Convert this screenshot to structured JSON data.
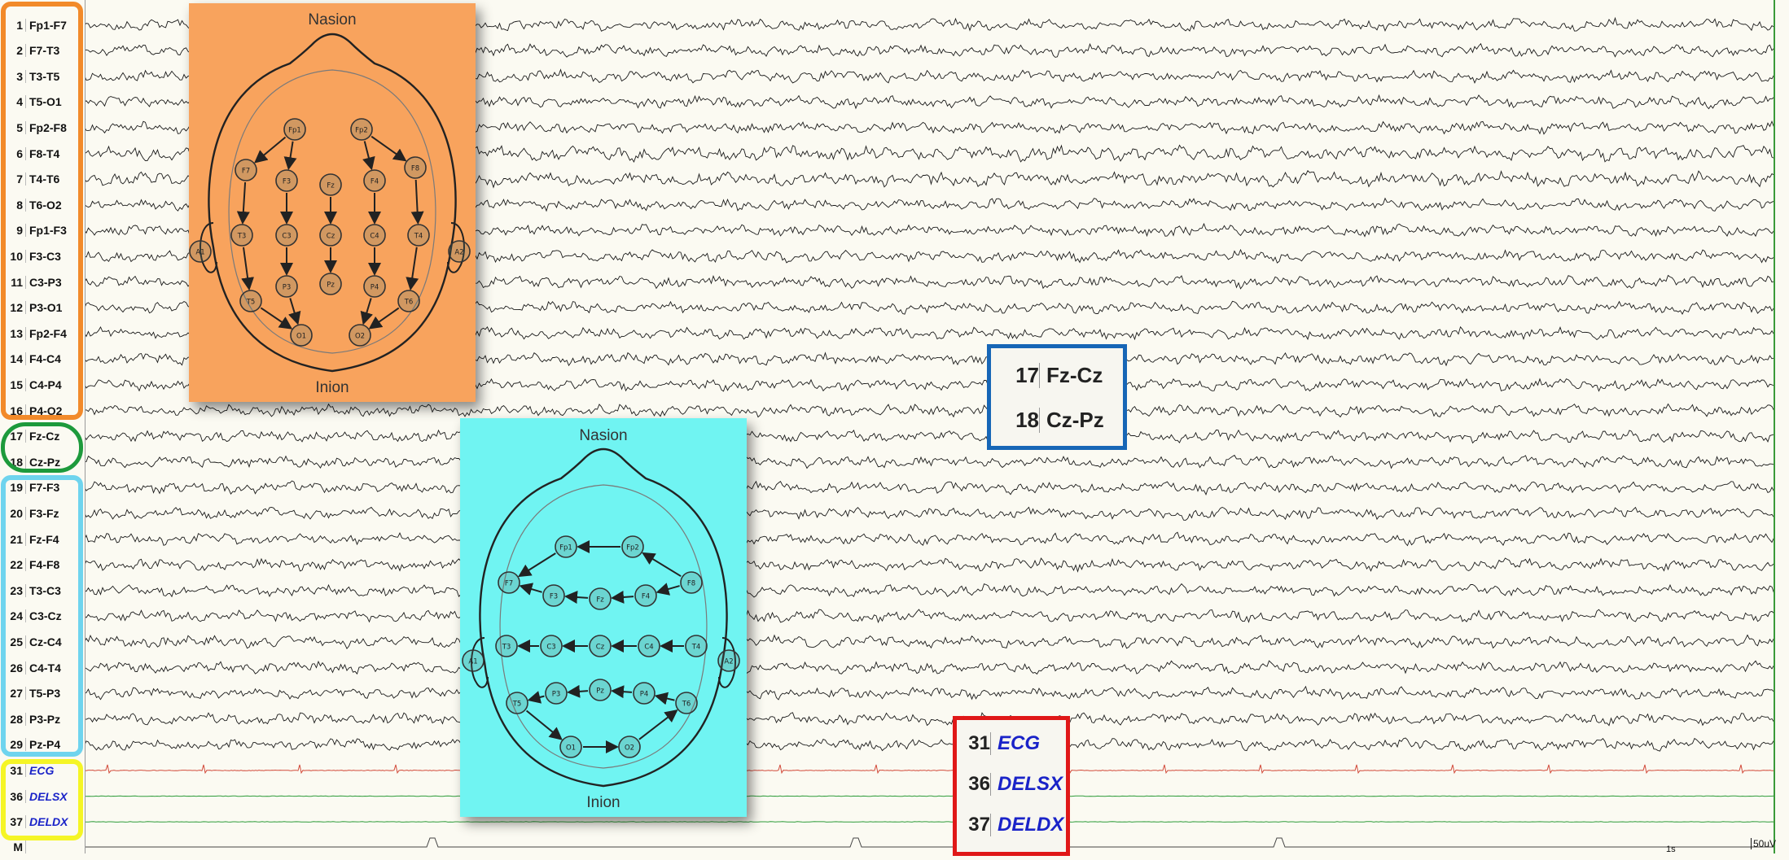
{
  "channels": [
    {
      "num": "1",
      "label": "Fp1-F7"
    },
    {
      "num": "2",
      "label": "F7-T3"
    },
    {
      "num": "3",
      "label": "T3-T5"
    },
    {
      "num": "4",
      "label": "T5-O1"
    },
    {
      "num": "5",
      "label": "Fp2-F8"
    },
    {
      "num": "6",
      "label": "F8-T4"
    },
    {
      "num": "7",
      "label": "T4-T6"
    },
    {
      "num": "8",
      "label": "T6-O2"
    },
    {
      "num": "9",
      "label": "Fp1-F3"
    },
    {
      "num": "10",
      "label": "F3-C3"
    },
    {
      "num": "11",
      "label": "C3-P3"
    },
    {
      "num": "12",
      "label": "P3-O1"
    },
    {
      "num": "13",
      "label": "Fp2-F4"
    },
    {
      "num": "14",
      "label": "F4-C4"
    },
    {
      "num": "15",
      "label": "C4-P4"
    },
    {
      "num": "16",
      "label": "P4-O2"
    },
    {
      "num": "17",
      "label": "Fz-Cz"
    },
    {
      "num": "18",
      "label": "Cz-Pz"
    },
    {
      "num": "19",
      "label": "F7-F3"
    },
    {
      "num": "20",
      "label": "F3-Fz"
    },
    {
      "num": "21",
      "label": "Fz-F4"
    },
    {
      "num": "22",
      "label": "F4-F8"
    },
    {
      "num": "23",
      "label": "T3-C3"
    },
    {
      "num": "24",
      "label": "C3-Cz"
    },
    {
      "num": "25",
      "label": "Cz-C4"
    },
    {
      "num": "26",
      "label": "C4-T4"
    },
    {
      "num": "27",
      "label": "T5-P3"
    },
    {
      "num": "28",
      "label": "P3-Pz"
    },
    {
      "num": "29",
      "label": "Pz-P4"
    },
    {
      "num": "31",
      "label": "ECG",
      "special": true
    },
    {
      "num": "36",
      "label": "DELSX",
      "special": true
    },
    {
      "num": "37",
      "label": "DELDX",
      "special": true
    },
    {
      "num": "M",
      "label": ""
    }
  ],
  "group_colors": {
    "longitudinal": "#f28a2a",
    "midline": "#1d9a3c",
    "transverse": "#6fd4ee",
    "polygraphic": "#f5f526"
  },
  "trace_colors": {
    "eeg": "#1a1a1a",
    "ecg": "#d24a3a",
    "emg": "#2e9c3a",
    "marker": "#444444"
  },
  "inset_longitudinal": {
    "top": "Nasion",
    "bottom": "Inion",
    "bg": "#f8a35d"
  },
  "inset_transverse": {
    "top": "Nasion",
    "bottom": "Inion",
    "bg": "#70f4f2"
  },
  "electrodes_longitudinal": [
    "Fp1",
    "Fp2",
    "F7",
    "F3",
    "Fz",
    "F4",
    "F8",
    "A1",
    "T3",
    "C3",
    "Cz",
    "C4",
    "T4",
    "A2",
    "P3",
    "Pz",
    "P4",
    "T5",
    "T6",
    "O1",
    "O2"
  ],
  "electrodes_transverse": [
    "Fp1",
    "Fp2",
    "F7",
    "F3",
    "Fz",
    "F4",
    "F8",
    "A1",
    "T3",
    "C3",
    "Cz",
    "C4",
    "T4",
    "A2",
    "T5",
    "P3",
    "Pz",
    "P4",
    "T6",
    "O1",
    "O2"
  ],
  "zoom_midline": {
    "rows": [
      {
        "num": "17",
        "label": "Fz-Cz"
      },
      {
        "num": "18",
        "label": "Cz-Pz"
      }
    ],
    "border": "#1766b6"
  },
  "zoom_poly": {
    "rows": [
      {
        "num": "31",
        "label": "ECG"
      },
      {
        "num": "36",
        "label": "DELSX"
      },
      {
        "num": "37",
        "label": "DELDX"
      }
    ],
    "border": "#e01818"
  },
  "scale": {
    "time": "1s",
    "amplitude": "50uV"
  }
}
